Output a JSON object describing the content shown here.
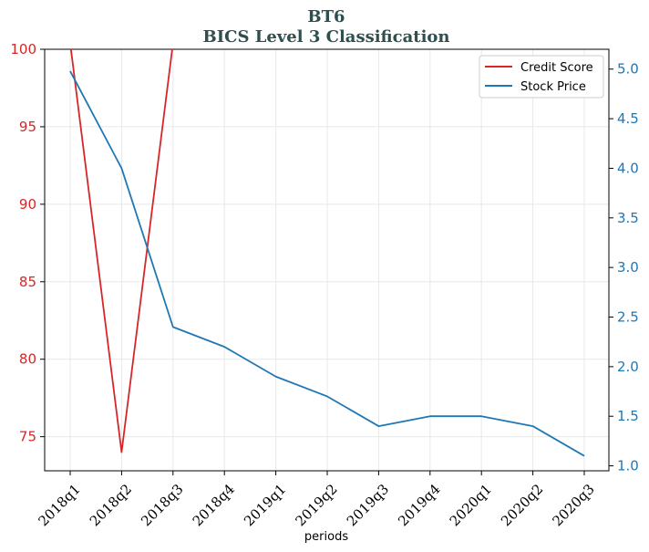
{
  "chart_data": {
    "type": "line",
    "title": "BT6",
    "subtitle": "BICS Level 3 Classification",
    "xlabel": "periods",
    "ylabel_left": "",
    "ylabel_right": "",
    "categories": [
      "2018q1",
      "2018q2",
      "2018q3",
      "2018q4",
      "2019q1",
      "2019q2",
      "2019q3",
      "2019q4",
      "2020q1",
      "2020q2",
      "2020q3"
    ],
    "y_left": {
      "lim": [
        72.8,
        100
      ],
      "ticks": [
        75,
        80,
        85,
        90,
        95,
        100
      ],
      "color": "#d62728"
    },
    "y_right": {
      "lim": [
        0.95,
        5.2
      ],
      "ticks": [
        1.0,
        1.5,
        2.0,
        2.5,
        3.0,
        3.5,
        4.0,
        4.5,
        5.0
      ],
      "color": "#1f77b4"
    },
    "grid": true,
    "legend_position": "top-right",
    "series": [
      {
        "name": "Credit Score",
        "axis": "left",
        "color": "#d62728",
        "values": [
          100.4,
          74,
          100.4,
          null,
          null,
          null,
          null,
          null,
          null,
          null,
          null
        ]
      },
      {
        "name": "Stock Price",
        "axis": "right",
        "color": "#1f77b4",
        "values": [
          4.98,
          4.0,
          2.4,
          2.2,
          1.9,
          1.7,
          1.4,
          1.5,
          1.5,
          1.4,
          1.1
        ]
      }
    ]
  }
}
